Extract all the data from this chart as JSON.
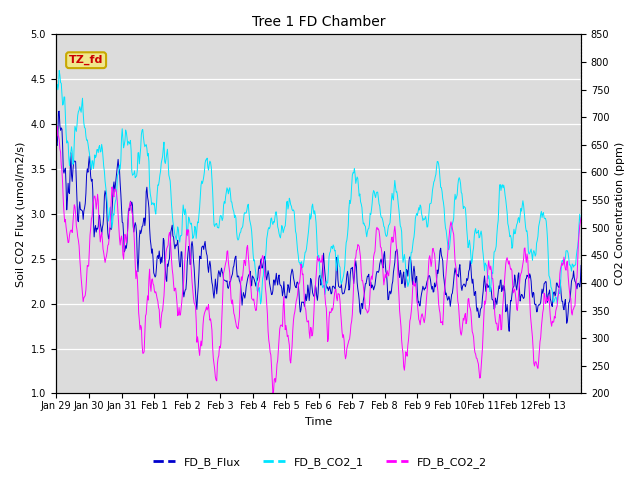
{
  "title": "Tree 1 FD Chamber",
  "xlabel": "Time",
  "ylabel_left": "Soil CO2 Flux (umol/m2/s)",
  "ylabel_right": "CO2 Concentration (ppm)",
  "ylim_left": [
    1.0,
    5.0
  ],
  "ylim_right": [
    200,
    850
  ],
  "annotation_text": "TZ_fd",
  "annotation_color": "#cc0000",
  "annotation_bg": "#f0e68c",
  "annotation_border": "#c8a800",
  "flux_color": "#0000cd",
  "co2_1_color": "#00e5ff",
  "co2_2_color": "#ff00ff",
  "legend_labels": [
    "FD_B_Flux",
    "FD_B_CO2_1",
    "FD_B_CO2_2"
  ],
  "bg_color": "#dcdcdc",
  "fig_bg_color": "#ffffff",
  "tick_label_size": 7,
  "axis_label_size": 8,
  "title_size": 10,
  "seed": 12345,
  "n_points": 768,
  "n_days": 16
}
